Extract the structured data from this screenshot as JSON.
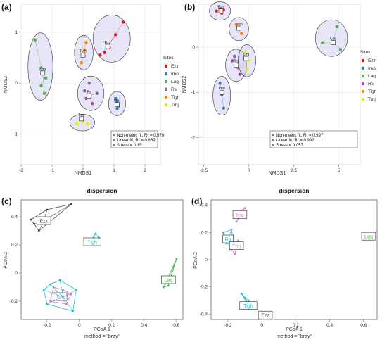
{
  "chart_data": [
    {
      "type": "scatter",
      "panel_label": "(a)",
      "xlabel": "NMDS1",
      "ylabel": "NMDS2",
      "xlim": [
        -2.0,
        2.5
      ],
      "ylim": [
        -1.6,
        1.55
      ],
      "xticks": [
        -2,
        -1,
        0,
        1,
        2
      ],
      "yticks": [
        -1,
        0,
        1
      ],
      "grid": true,
      "legend_title": "Sites",
      "legend_position": "right",
      "stats": [
        "Non-metric fit, R² = 0.976",
        "Linear fit, R² = 0.889",
        "Stress = 0.15"
      ],
      "series": [
        {
          "name": "Ezz",
          "color": "#e41a1c",
          "points": [
            [
              0.55,
              0.55
            ],
            [
              0.7,
              0.6
            ],
            [
              0.85,
              0.7
            ],
            [
              1.05,
              0.95
            ],
            [
              1.3,
              1.2
            ]
          ],
          "centroid": [
            0.8,
            0.72
          ]
        },
        {
          "name": "Imo",
          "color": "#377eb8",
          "points": [
            [
              1.05,
              -0.3
            ],
            [
              1.1,
              -0.35
            ],
            [
              1.15,
              -0.45
            ],
            [
              1.1,
              -0.5
            ]
          ],
          "centroid": [
            1.1,
            -0.42
          ]
        },
        {
          "name": "Laq",
          "color": "#4daf4a",
          "points": [
            [
              -1.55,
              0.85
            ],
            [
              -1.35,
              0.3
            ],
            [
              -1.2,
              0.1
            ],
            [
              -1.25,
              -0.2
            ],
            [
              -1.35,
              -0.05
            ]
          ],
          "centroid": [
            -1.3,
            0.2
          ]
        },
        {
          "name": "Rs",
          "color": "#984ea3",
          "points": [
            [
              0.1,
              -0.3
            ],
            [
              0.3,
              -0.4
            ],
            [
              0.45,
              -0.2
            ],
            [
              0.2,
              0.0
            ],
            [
              0.05,
              -0.15
            ]
          ],
          "centroid": [
            0.2,
            -0.25
          ]
        },
        {
          "name": "Tigh",
          "color": "#ff7f00",
          "points": [
            [
              -0.05,
              0.4
            ],
            [
              0.0,
              0.55
            ],
            [
              0.05,
              0.65
            ],
            [
              0.1,
              0.8
            ]
          ],
          "centroid": [
            0.0,
            0.55
          ]
        },
        {
          "name": "Tmj",
          "color": "#f2e400",
          "points": [
            [
              -0.2,
              -0.8
            ],
            [
              0.0,
              -0.75
            ],
            [
              0.15,
              -0.8
            ]
          ],
          "centroid": [
            -0.05,
            -0.7
          ]
        }
      ]
    },
    {
      "type": "scatter",
      "panel_label": "(b)",
      "xlabel": "NMDS1",
      "ylabel": "NMDS2",
      "xlim": [
        -2.8,
        6.2
      ],
      "ylim": [
        -2.6,
        0.95
      ],
      "xticks": [
        -2.5,
        0.0,
        2.5,
        5.0
      ],
      "yticks": [
        -2,
        -1,
        0
      ],
      "grid": true,
      "legend_title": "Sites",
      "legend_position": "right",
      "stats": [
        "Non-metric fit, R² = 0.997",
        "Linear fit, R² = 0.992",
        "Stress = 0.057"
      ],
      "series": [
        {
          "name": "Ezz",
          "color": "#e41a1c",
          "points": [
            [
              -1.8,
              0.8
            ],
            [
              -1.6,
              0.85
            ],
            [
              -1.4,
              0.82
            ],
            [
              -1.5,
              0.75
            ]
          ],
          "centroid": [
            -1.55,
            0.8
          ]
        },
        {
          "name": "Imo",
          "color": "#377eb8",
          "points": [
            [
              -1.6,
              -0.8
            ],
            [
              -1.5,
              -1.05
            ],
            [
              -1.4,
              -1.35
            ]
          ],
          "centroid": [
            -1.5,
            -1.0
          ]
        },
        {
          "name": "Laq",
          "color": "#4daf4a",
          "points": [
            [
              4.1,
              0.1
            ],
            [
              4.9,
              0.45
            ],
            [
              5.1,
              -0.05
            ]
          ],
          "centroid": [
            4.7,
            0.1
          ]
        },
        {
          "name": "Rs",
          "color": "#984ea3",
          "points": [
            [
              -0.8,
              -0.2
            ],
            [
              -0.6,
              -0.45
            ],
            [
              -0.5,
              -0.6
            ],
            [
              -0.9,
              -0.3
            ]
          ],
          "centroid": [
            -0.7,
            -0.4
          ]
        },
        {
          "name": "Tigh",
          "color": "#ff7f00",
          "points": [
            [
              -0.7,
              0.5
            ],
            [
              -0.5,
              0.4
            ],
            [
              -0.4,
              0.3
            ]
          ],
          "centroid": [
            -0.55,
            0.42
          ]
        },
        {
          "name": "Tmj",
          "color": "#f2e400",
          "points": [
            [
              -0.2,
              -0.1
            ],
            [
              0.0,
              -0.3
            ],
            [
              -0.1,
              -0.5
            ]
          ],
          "centroid": [
            -0.15,
            -0.25
          ]
        }
      ]
    },
    {
      "type": "scatter",
      "panel_label": "(c)",
      "title": "dispersion",
      "xlabel": "PCoA 1",
      "subtitle": "method = \"bray\"",
      "ylabel": "PCoA 2",
      "xlim": [
        -0.36,
        0.64
      ],
      "ylim": [
        -0.33,
        0.52
      ],
      "xticks": [
        -0.2,
        0.0,
        0.2,
        0.4,
        0.6
      ],
      "yticks": [
        -0.2,
        0.0,
        0.2,
        0.4
      ],
      "grid": false,
      "groups": [
        {
          "name": "Ezz",
          "color": "#444444",
          "centroid": [
            -0.22,
            0.37
          ],
          "points": [
            [
              -0.3,
              0.38
            ],
            [
              -0.25,
              0.3
            ],
            [
              -0.2,
              0.45
            ],
            [
              -0.05,
              0.49
            ],
            [
              -0.28,
              0.35
            ]
          ]
        },
        {
          "name": "Tigh",
          "color": "#17becf",
          "centroid": [
            0.08,
            0.22
          ],
          "points": [
            [
              0.05,
              0.2
            ],
            [
              0.1,
              0.28
            ],
            [
              0.12,
              0.25
            ]
          ]
        },
        {
          "name": "Laq",
          "color": "#4daf4a",
          "centroid": [
            0.55,
            -0.05
          ],
          "points": [
            [
              0.52,
              -0.1
            ],
            [
              0.56,
              -0.05
            ],
            [
              0.6,
              0.1
            ],
            [
              0.55,
              -0.09
            ]
          ]
        },
        {
          "name": "Tmj",
          "color": "#e377c2",
          "centroid": [
            -0.12,
            -0.17
          ],
          "points": [
            [
              -0.18,
              -0.2
            ],
            [
              -0.1,
              -0.12
            ],
            [
              -0.08,
              -0.22
            ],
            [
              -0.16,
              -0.1
            ],
            [
              -0.05,
              -0.15
            ]
          ]
        },
        {
          "name": "",
          "color": "#17becf",
          "centroid": [
            -0.1,
            -0.17
          ],
          "points": [
            [
              -0.2,
              -0.22
            ],
            [
              -0.02,
              -0.12
            ],
            [
              -0.04,
              -0.27
            ],
            [
              -0.12,
              -0.05
            ],
            [
              -0.22,
              -0.12
            ],
            [
              -0.18,
              -0.08
            ]
          ]
        }
      ]
    },
    {
      "type": "scatter",
      "panel_label": "(d)",
      "title": "dispersion",
      "xlabel": "PCoA 1",
      "subtitle": "method = \"bray\"",
      "ylabel": "PCoA 2",
      "xlim": [
        -0.3,
        0.68
      ],
      "ylim": [
        -0.44,
        0.44
      ],
      "xticks": [
        -0.2,
        0.0,
        0.2,
        0.4,
        0.6
      ],
      "yticks": [
        -0.4,
        -0.2,
        0.0,
        0.2,
        0.4
      ],
      "grid": false,
      "groups": [
        {
          "name": "Imo",
          "color": "#e377c2",
          "centroid": [
            -0.13,
            0.33
          ],
          "points": [
            [
              -0.15,
              0.28
            ],
            [
              -0.12,
              0.36
            ],
            [
              -0.1,
              0.38
            ]
          ]
        },
        {
          "name": "Rs",
          "color": "#17becf",
          "centroid": [
            -0.2,
            0.15
          ],
          "points": [
            [
              -0.23,
              0.2
            ],
            [
              -0.18,
              0.22
            ],
            [
              -0.21,
              0.12
            ],
            [
              -0.16,
              0.1
            ]
          ]
        },
        {
          "name": "Tmj",
          "color": "#e377c2",
          "centroid": [
            -0.15,
            0.1
          ],
          "points": [
            [
              -0.16,
              0.04
            ],
            [
              -0.14,
              0.14
            ],
            [
              -0.18,
              0.08
            ]
          ]
        },
        {
          "name": "Laq",
          "color": "#4daf4a",
          "centroid": [
            0.63,
            0.17
          ],
          "points": []
        },
        {
          "name": "Tigh",
          "color": "#17becf",
          "centroid": [
            -0.08,
            -0.34
          ],
          "points": [
            [
              -0.12,
              -0.25
            ],
            [
              -0.08,
              -0.3
            ],
            [
              -0.06,
              -0.36
            ],
            [
              -0.1,
              -0.28
            ]
          ]
        },
        {
          "name": "Ezz",
          "color": "#444444",
          "centroid": [
            0.02,
            -0.41
          ],
          "points": []
        }
      ]
    }
  ]
}
